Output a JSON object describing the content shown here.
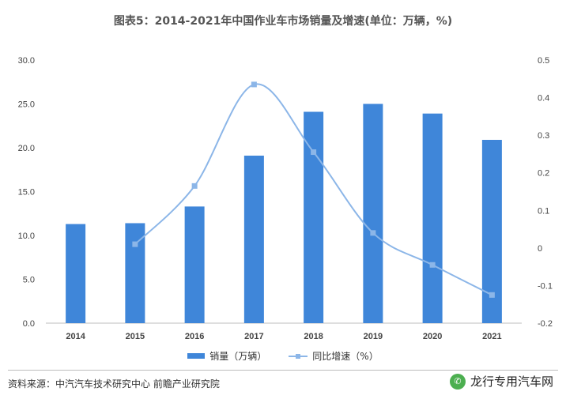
{
  "page": {
    "title": "图表5：2014-2021年中国作业车市场销量及增速(单位：万辆，%)",
    "source": "资料来源：中汽汽车技术研究中心 前瞻产业研究院",
    "brand": "龙行专用汽车网",
    "brand_icon": "wechat-icon"
  },
  "chart_data": {
    "type": "bar",
    "categories": [
      "2014",
      "2015",
      "2016",
      "2017",
      "2018",
      "2019",
      "2020",
      "2021"
    ],
    "series": [
      {
        "name": "销量（万辆）",
        "type": "bar",
        "axis": "left",
        "color": "#3f86d9",
        "values": [
          11.3,
          11.4,
          13.3,
          19.1,
          24.1,
          25.0,
          23.9,
          20.9
        ]
      },
      {
        "name": "同比增速（%）",
        "type": "line",
        "axis": "right",
        "color": "#8cb6e8",
        "values": [
          null,
          0.01,
          0.165,
          0.435,
          0.255,
          0.04,
          -0.045,
          -0.125
        ]
      }
    ],
    "y_left": {
      "lim": [
        0,
        30
      ],
      "ticks": [
        "0.0",
        "5.0",
        "10.0",
        "15.0",
        "20.0",
        "25.0",
        "30.0"
      ]
    },
    "y_right": {
      "lim": [
        -0.2,
        0.5
      ],
      "ticks": [
        "-0.2",
        "-0.1",
        "0",
        "0.1",
        "0.2",
        "0.3",
        "0.4",
        "0.5"
      ]
    },
    "grid": false,
    "legend": "bottom-center"
  }
}
